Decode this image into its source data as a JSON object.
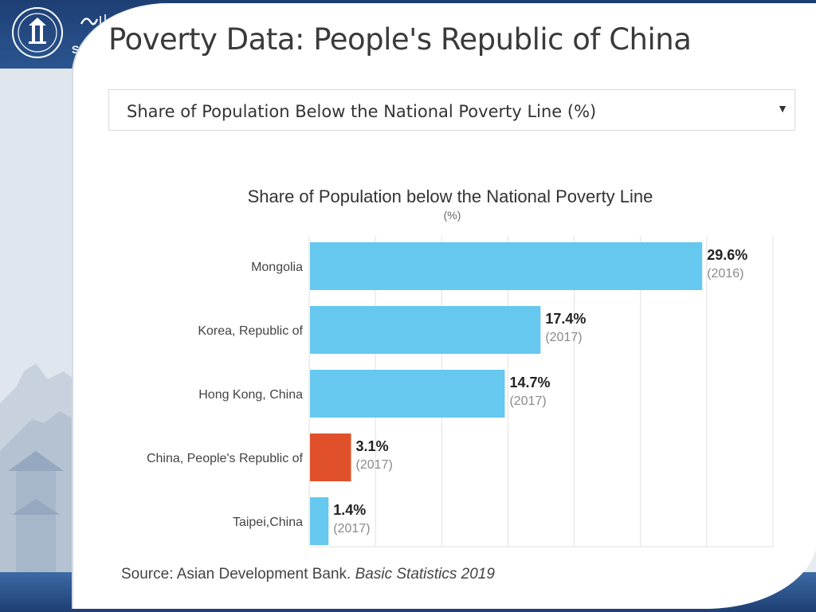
{
  "page": {
    "title": "Poverty Data: People's Republic of China",
    "header_logo_text": "Sicl"
  },
  "selector": {
    "selected": "Share of Population Below the National Poverty Line (%)"
  },
  "chart_data": {
    "type": "bar",
    "orientation": "horizontal",
    "title": "Share of Population below the National Poverty Line",
    "subtitle": "(%)",
    "categories": [
      "Mongolia",
      "Korea, Republic of",
      "Hong Kong, China",
      "China, People's Republic of",
      "Taipei,China"
    ],
    "values": [
      29.6,
      17.4,
      14.7,
      3.1,
      1.4
    ],
    "value_labels": [
      "29.6%",
      "17.4%",
      "14.7%",
      "3.1%",
      "1.4%"
    ],
    "years": [
      "(2016)",
      "(2017)",
      "(2017)",
      "(2017)",
      "(2017)"
    ],
    "highlight_index": 3,
    "xlim": [
      0,
      35
    ],
    "grid": true,
    "legend": "none",
    "colors": {
      "default": "#66c8ef",
      "highlight": "#e0512b",
      "grid": "#e2e2e2"
    }
  },
  "source": {
    "prefix": "Source: Asian Development Bank.",
    "title": "Basic Statistics 2019"
  }
}
